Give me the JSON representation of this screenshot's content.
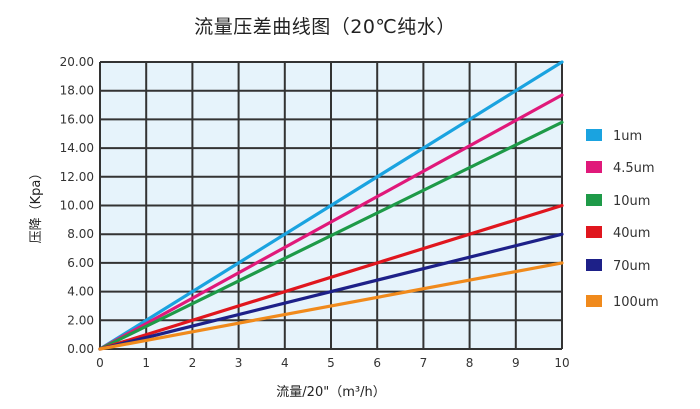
{
  "chart_data": {
    "type": "line",
    "title": "流量压差曲线图（20℃纯水）",
    "xlabel": "流量/20\"（m³/h）",
    "ylabel": "压降（Kpa）",
    "xlim": [
      0,
      10
    ],
    "ylim": [
      0,
      20
    ],
    "x_ticks": [
      "0",
      "1",
      "2",
      "3",
      "4",
      "5",
      "6",
      "7",
      "8",
      "9",
      "10"
    ],
    "y_ticks": [
      "0.00",
      "2.00",
      "4.00",
      "6.00",
      "8.00",
      "10.00",
      "12.00",
      "14.00",
      "16.00",
      "18.00",
      "20.00"
    ],
    "grid": true,
    "background_color": "#e6f3fb",
    "grid_color": "#333333",
    "legend_position": "right",
    "series": [
      {
        "name": "1um",
        "color": "#1aa3e0",
        "x": [
          0,
          10
        ],
        "y": [
          0,
          20.0
        ]
      },
      {
        "name": "4.5um",
        "color": "#e0197a",
        "x": [
          0,
          10
        ],
        "y": [
          0,
          17.7
        ]
      },
      {
        "name": "10um",
        "color": "#1e9a48",
        "x": [
          0,
          10
        ],
        "y": [
          0,
          15.8
        ]
      },
      {
        "name": "40um",
        "color": "#e0161e",
        "x": [
          0,
          10
        ],
        "y": [
          0,
          10.0
        ]
      },
      {
        "name": "70um",
        "color": "#1d2088",
        "x": [
          0,
          10
        ],
        "y": [
          0,
          8.0
        ]
      },
      {
        "name": "100um",
        "color": "#f08a1c",
        "x": [
          0,
          10
        ],
        "y": [
          0,
          6.0
        ]
      }
    ]
  }
}
